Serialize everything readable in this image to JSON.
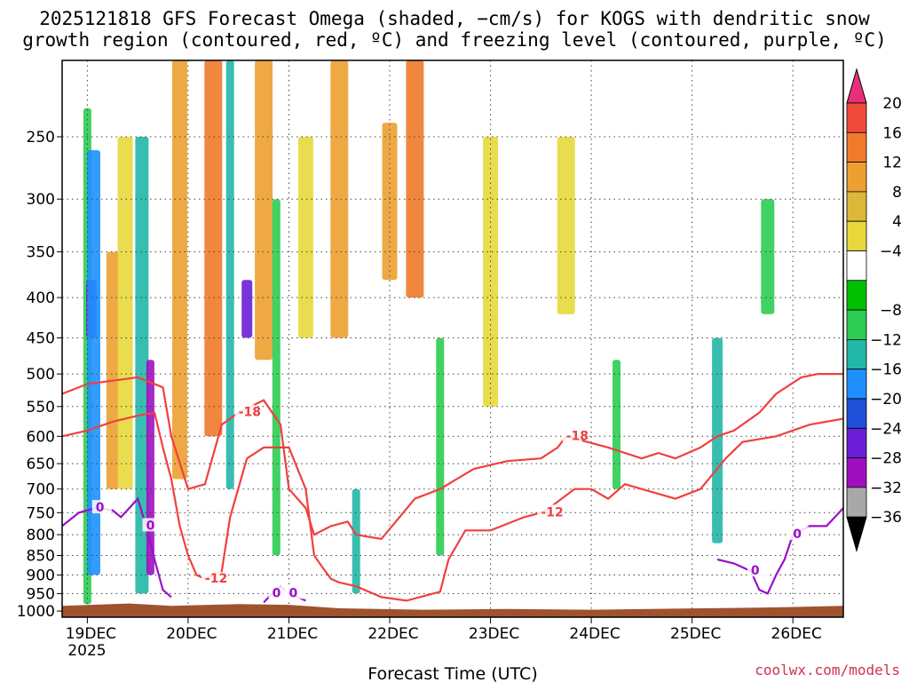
{
  "chart_data": {
    "type": "heatmap",
    "title_lines": [
      "2025121818 GFS Forecast Omega (shaded, −cm/s) for KOGS with dendritic snow",
      "growth region (contoured, red, ºC) and freezing level (contoured, purple, ºC)"
    ],
    "xlabel": "Forecast Time (UTC)",
    "credit": "coolwx.com/models",
    "x_ticks": [
      "19DEC",
      "20DEC",
      "21DEC",
      "22DEC",
      "23DEC",
      "24DEC",
      "25DEC",
      "26DEC"
    ],
    "x_year": "2025",
    "xlim_hours": [
      -6,
      180
    ],
    "y_ticks": [
      250,
      300,
      350,
      400,
      450,
      500,
      550,
      600,
      650,
      700,
      750,
      800,
      850,
      900,
      950,
      1000
    ],
    "y_unit": "hPa",
    "ylim_hPa": [
      200,
      1018
    ],
    "colorbar": {
      "labels": [
        "20",
        "16",
        "12",
        "8",
        "4",
        "−4",
        "−8",
        "−12",
        "−16",
        "−20",
        "−24",
        "−28",
        "−32",
        "−36"
      ],
      "colors": [
        "#e8307a",
        "#f04a3a",
        "#f07a2a",
        "#eda030",
        "#ddb73a",
        "#e8d83c",
        "#ffffff",
        "#00c000",
        "#2ecc52",
        "#22b7a8",
        "#1e90ff",
        "#2050d8",
        "#6a1fd6",
        "#9e0fc0",
        "#a8a8a8",
        "#000000"
      ]
    },
    "shaded_omega": [
      {
        "t": 0,
        "p1": 230,
        "p2": 980,
        "v": -8
      },
      {
        "t": 1,
        "p1": 380,
        "p2": 450,
        "v": -24
      },
      {
        "t": 1.5,
        "p1": 260,
        "p2": 900,
        "v": -16
      },
      {
        "t": 6,
        "p1": 350,
        "p2": 700,
        "v": 8
      },
      {
        "t": 9,
        "p1": 250,
        "p2": 700,
        "v": 6
      },
      {
        "t": 13,
        "p1": 250,
        "p2": 950,
        "v": -12
      },
      {
        "t": 15,
        "p1": 480,
        "p2": 900,
        "v": -28
      },
      {
        "t": 22,
        "p1": 200,
        "p2": 680,
        "v": 10
      },
      {
        "t": 30,
        "p1": 200,
        "p2": 600,
        "v": 14
      },
      {
        "t": 34,
        "p1": 200,
        "p2": 700,
        "v": -12
      },
      {
        "t": 38,
        "p1": 380,
        "p2": 450,
        "v": -24
      },
      {
        "t": 42,
        "p1": 200,
        "p2": 480,
        "v": 8
      },
      {
        "t": 45,
        "p1": 300,
        "p2": 850,
        "v": -10
      },
      {
        "t": 52,
        "p1": 250,
        "p2": 450,
        "v": 6
      },
      {
        "t": 60,
        "p1": 200,
        "p2": 450,
        "v": 10
      },
      {
        "t": 64,
        "p1": 700,
        "p2": 950,
        "v": -12
      },
      {
        "t": 72,
        "p1": 240,
        "p2": 380,
        "v": 8
      },
      {
        "t": 78,
        "p1": 200,
        "p2": 400,
        "v": 14
      },
      {
        "t": 84,
        "p1": 450,
        "p2": 850,
        "v": -8
      },
      {
        "t": 96,
        "p1": 250,
        "p2": 550,
        "v": 6
      },
      {
        "t": 114,
        "p1": 250,
        "p2": 420,
        "v": 6
      },
      {
        "t": 126,
        "p1": 480,
        "p2": 700,
        "v": -10
      },
      {
        "t": 150,
        "p1": 450,
        "p2": 820,
        "v": -14
      },
      {
        "t": 162,
        "p1": 300,
        "p2": 420,
        "v": -10
      }
    ],
    "contours": [
      {
        "label": "-18",
        "color": "#f04040",
        "points": [
          [
            -6,
            530
          ],
          [
            0,
            515
          ],
          [
            6,
            510
          ],
          [
            12,
            505
          ],
          [
            18,
            520
          ],
          [
            20,
            600
          ],
          [
            24,
            700
          ],
          [
            28,
            690
          ],
          [
            32,
            580
          ],
          [
            36,
            560
          ],
          [
            42,
            540
          ],
          [
            46,
            580
          ],
          [
            48,
            700
          ],
          [
            52,
            740
          ],
          [
            54,
            800
          ],
          [
            58,
            780
          ],
          [
            62,
            770
          ],
          [
            64,
            800
          ],
          [
            70,
            810
          ],
          [
            78,
            720
          ],
          [
            84,
            700
          ],
          [
            92,
            660
          ],
          [
            100,
            645
          ],
          [
            108,
            640
          ],
          [
            112,
            620
          ],
          [
            114,
            600
          ],
          [
            124,
            620
          ],
          [
            132,
            640
          ],
          [
            136,
            630
          ],
          [
            140,
            640
          ],
          [
            146,
            620
          ],
          [
            150,
            600
          ],
          [
            154,
            590
          ],
          [
            160,
            560
          ],
          [
            164,
            530
          ],
          [
            170,
            505
          ],
          [
            174,
            500
          ],
          [
            180,
            500
          ]
        ]
      },
      {
        "label": "-12",
        "color": "#f04040",
        "points": [
          [
            -6,
            600
          ],
          [
            0,
            590
          ],
          [
            6,
            575
          ],
          [
            12,
            565
          ],
          [
            16,
            560
          ],
          [
            18,
            620
          ],
          [
            20,
            680
          ],
          [
            22,
            780
          ],
          [
            24,
            850
          ],
          [
            26,
            900
          ],
          [
            28,
            910
          ],
          [
            30,
            900
          ],
          [
            32,
            890
          ],
          [
            34,
            760
          ],
          [
            38,
            640
          ],
          [
            42,
            620
          ],
          [
            48,
            620
          ],
          [
            52,
            700
          ],
          [
            54,
            850
          ],
          [
            56,
            880
          ],
          [
            58,
            910
          ],
          [
            60,
            920
          ],
          [
            64,
            930
          ],
          [
            70,
            960
          ],
          [
            76,
            970
          ],
          [
            84,
            945
          ],
          [
            86,
            860
          ],
          [
            90,
            790
          ],
          [
            96,
            790
          ],
          [
            104,
            760
          ],
          [
            108,
            750
          ],
          [
            110,
            740
          ],
          [
            116,
            700
          ],
          [
            120,
            700
          ],
          [
            124,
            720
          ],
          [
            128,
            690
          ],
          [
            132,
            700
          ],
          [
            140,
            720
          ],
          [
            146,
            700
          ],
          [
            152,
            640
          ],
          [
            156,
            610
          ],
          [
            164,
            600
          ],
          [
            172,
            580
          ],
          [
            180,
            570
          ]
        ]
      },
      {
        "label": "0",
        "color": "#9b10c8",
        "points": [
          [
            -6,
            780
          ],
          [
            -2,
            750
          ],
          [
            2,
            740
          ],
          [
            6,
            745
          ],
          [
            8,
            760
          ],
          [
            10,
            740
          ],
          [
            12,
            720
          ],
          [
            14,
            780
          ],
          [
            16,
            860
          ],
          [
            18,
            940
          ],
          [
            20,
            960
          ]
        ]
      },
      {
        "label": "0",
        "color": "#9b10c8",
        "points": [
          [
            42,
            975
          ],
          [
            44,
            950
          ],
          [
            46,
            930
          ],
          [
            48,
            950
          ],
          [
            50,
            960
          ],
          [
            52,
            970
          ]
        ]
      },
      {
        "label": "0",
        "color": "#9b10c8",
        "points": [
          [
            150,
            860
          ],
          [
            154,
            870
          ],
          [
            158,
            890
          ],
          [
            160,
            940
          ],
          [
            162,
            950
          ],
          [
            164,
            900
          ],
          [
            166,
            860
          ],
          [
            168,
            800
          ],
          [
            170,
            790
          ],
          [
            172,
            780
          ],
          [
            176,
            780
          ],
          [
            180,
            740
          ]
        ]
      }
    ],
    "terrain_color": "#a0522d"
  }
}
